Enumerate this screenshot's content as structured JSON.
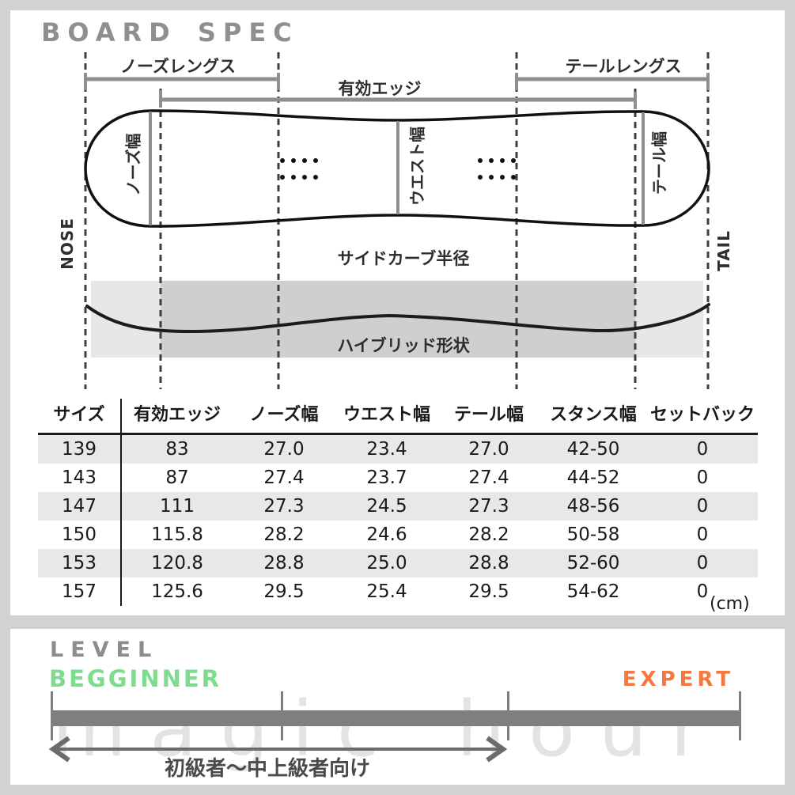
{
  "board_spec": {
    "title": "BOARD SPEC",
    "diagram": {
      "dim_labels": {
        "nose_length": "ノーズレングス",
        "effective_edge": "有効エッジ",
        "tail_length": "テールレングス"
      },
      "width_labels": {
        "nose": "ノーズ幅",
        "waist": "ウエスト幅",
        "tail": "テール幅"
      },
      "end_labels": {
        "nose": "NOSE",
        "tail": "TAIL"
      },
      "sidecut_label": "サイドカーブ半径",
      "profile_label": "ハイブリッド形状"
    },
    "table": {
      "columns": [
        "サイズ",
        "有効エッジ",
        "ノーズ幅",
        "ウエスト幅",
        "テール幅",
        "スタンス幅",
        "セットバック"
      ],
      "rows": [
        [
          "139",
          "83",
          "27.0",
          "23.4",
          "27.0",
          "42-50",
          "0"
        ],
        [
          "143",
          "87",
          "27.4",
          "23.7",
          "27.4",
          "44-52",
          "0"
        ],
        [
          "147",
          "111",
          "27.3",
          "24.5",
          "27.3",
          "48-56",
          "0"
        ],
        [
          "150",
          "115.8",
          "28.2",
          "24.6",
          "28.2",
          "50-58",
          "0"
        ],
        [
          "153",
          "120.8",
          "28.8",
          "25.0",
          "28.8",
          "52-60",
          "0"
        ],
        [
          "157",
          "125.6",
          "29.5",
          "25.4",
          "29.5",
          "54-62",
          "0"
        ]
      ],
      "unit": "(cm)"
    }
  },
  "level": {
    "title": "LEVEL",
    "beginner_label": "BEGGINNER",
    "expert_label": "EXPERT",
    "range_label": "初級者～中上級者向け",
    "colors": {
      "beginner_green": "#7ddc8d",
      "expert_orange": "#f3793f",
      "bar_gray": "#7f7f7f"
    }
  },
  "watermark": "magic hour"
}
